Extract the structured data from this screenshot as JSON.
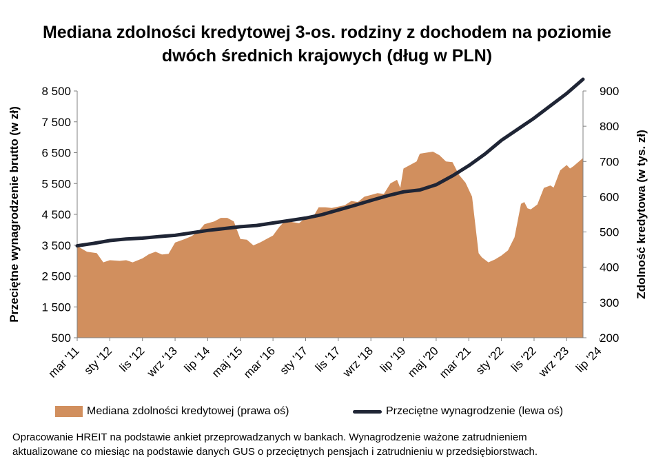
{
  "title_lines": [
    "Mediana zdolności kredytowej 3-os. rodziny z dochodem na poziomie",
    "dwóch średnich krajowych (dług w PLN)"
  ],
  "footnote_lines": [
    "Opracowanie HREIT na podstawie ankiet przeprowadzanych w bankach. Wynagrodzenie ważone zatrudnieniem",
    "aktualizowane co miesiąc na podstawie danych GUS o przeciętnych pensjach i zatrudnieniu w przedsiębiorstwach."
  ],
  "chart_data": {
    "type": "area",
    "title": "Mediana zdolności kredytowej 3-os. rodziny z dochodem na poziomie dwóch średnich krajowych (dług w PLN)",
    "ylabel_left": "Przeciętne wynagrodzenie brutto (w zł)",
    "ylabel_right": "Zdolność kredytowa (w tys. zł)",
    "ylim_left": [
      500,
      8500
    ],
    "ylim_right": [
      200,
      900
    ],
    "yticks_left": [
      "8 500",
      "7 500",
      "6 500",
      "5 500",
      "4 500",
      "3 500",
      "2 500",
      "1 500",
      "500"
    ],
    "yticks_right": [
      "900",
      "800",
      "700",
      "600",
      "500",
      "400",
      "300",
      "200"
    ],
    "x_tick_labels": [
      "mar '11",
      "sty '12",
      "lis '12",
      "wrz '13",
      "lip '14",
      "maj '15",
      "mar '16",
      "sty '17",
      "lis '17",
      "wrz '18",
      "lip '19",
      "maj '20",
      "mar '21",
      "sty '22",
      "lis '22",
      "wrz '23",
      "lip '24"
    ],
    "x_tick_interval_months": 10,
    "x_start": "mar '11",
    "x_end": "lip '24",
    "grid": false,
    "legend_position": "bottom",
    "colors": {
      "area": "#D18F5E",
      "line": "#1F2535"
    },
    "series": [
      {
        "name": "Mediana zdolności kredytowej (prawa oś)",
        "axis": "right",
        "kind": "area",
        "anchors": [
          [
            0,
            460
          ],
          [
            3,
            444
          ],
          [
            6,
            440
          ],
          [
            8,
            414
          ],
          [
            10,
            420
          ],
          [
            13,
            418
          ],
          [
            15,
            420
          ],
          [
            17,
            414
          ],
          [
            20,
            425
          ],
          [
            22,
            437
          ],
          [
            24,
            444
          ],
          [
            26,
            436
          ],
          [
            28,
            438
          ],
          [
            30,
            470
          ],
          [
            33,
            480
          ],
          [
            35,
            488
          ],
          [
            37,
            500
          ],
          [
            39,
            522
          ],
          [
            42,
            530
          ],
          [
            44,
            540
          ],
          [
            46,
            540
          ],
          [
            48,
            530
          ],
          [
            50,
            480
          ],
          [
            52,
            478
          ],
          [
            54,
            462
          ],
          [
            56,
            470
          ],
          [
            58,
            480
          ],
          [
            60,
            490
          ],
          [
            62,
            515
          ],
          [
            64,
            535
          ],
          [
            66,
            528
          ],
          [
            68,
            525
          ],
          [
            70,
            540
          ],
          [
            72,
            538
          ],
          [
            74,
            570
          ],
          [
            76,
            570
          ],
          [
            78,
            568
          ],
          [
            80,
            572
          ],
          [
            82,
            576
          ],
          [
            84,
            588
          ],
          [
            86,
            585
          ],
          [
            88,
            600
          ],
          [
            90,
            605
          ],
          [
            92,
            610
          ],
          [
            94,
            608
          ],
          [
            96,
            638
          ],
          [
            98,
            648
          ],
          [
            99,
            625
          ],
          [
            100,
            680
          ],
          [
            102,
            690
          ],
          [
            104,
            700
          ],
          [
            105,
            722
          ],
          [
            107,
            725
          ],
          [
            109,
            728
          ],
          [
            111,
            718
          ],
          [
            113,
            700
          ],
          [
            115,
            698
          ],
          [
            117,
            662
          ],
          [
            119,
            640
          ],
          [
            121,
            600
          ],
          [
            123,
            440
          ],
          [
            124,
            428
          ],
          [
            126,
            414
          ],
          [
            128,
            422
          ],
          [
            130,
            433
          ],
          [
            132,
            448
          ],
          [
            134,
            485
          ],
          [
            136,
            580
          ],
          [
            137,
            585
          ],
          [
            138,
            567
          ],
          [
            139,
            564
          ],
          [
            141,
            578
          ],
          [
            143,
            625
          ],
          [
            145,
            632
          ],
          [
            146,
            626
          ],
          [
            148,
            675
          ],
          [
            150,
            690
          ],
          [
            151,
            680
          ],
          [
            152,
            686
          ],
          [
            153,
            694
          ],
          [
            155,
            710
          ]
        ]
      },
      {
        "name": "Przeciętne wynagrodzenie (lewa oś)",
        "axis": "left",
        "kind": "line",
        "anchors": [
          [
            0,
            3480
          ],
          [
            5,
            3560
          ],
          [
            10,
            3650
          ],
          [
            15,
            3700
          ],
          [
            20,
            3730
          ],
          [
            25,
            3780
          ],
          [
            30,
            3820
          ],
          [
            35,
            3900
          ],
          [
            40,
            3980
          ],
          [
            45,
            4040
          ],
          [
            50,
            4100
          ],
          [
            55,
            4140
          ],
          [
            60,
            4220
          ],
          [
            65,
            4300
          ],
          [
            70,
            4380
          ],
          [
            75,
            4490
          ],
          [
            80,
            4640
          ],
          [
            85,
            4790
          ],
          [
            90,
            4950
          ],
          [
            95,
            5100
          ],
          [
            100,
            5230
          ],
          [
            105,
            5290
          ],
          [
            110,
            5460
          ],
          [
            115,
            5750
          ],
          [
            120,
            6080
          ],
          [
            125,
            6460
          ],
          [
            130,
            6900
          ],
          [
            135,
            7260
          ],
          [
            140,
            7620
          ],
          [
            145,
            8020
          ],
          [
            150,
            8420
          ],
          [
            155,
            8880
          ]
        ]
      }
    ]
  }
}
